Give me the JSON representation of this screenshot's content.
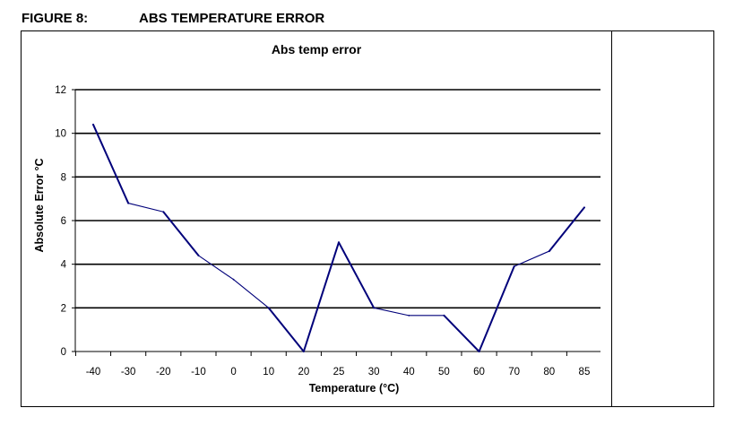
{
  "figure": {
    "label": "FIGURE 8:",
    "title": "ABS TEMPERATURE ERROR"
  },
  "chart_data": {
    "type": "line",
    "title": "Abs temp error",
    "xlabel": "Temperature  (°C)",
    "ylabel": "Absolute Error °C",
    "categories": [
      "-40",
      "-30",
      "-20",
      "-10",
      "0",
      "10",
      "20",
      "25",
      "30",
      "40",
      "50",
      "60",
      "70",
      "80",
      "85"
    ],
    "series": [
      {
        "values": [
          10.4,
          6.8,
          6.4,
          4.4,
          3.3,
          2.0,
          0.0,
          5.0,
          2.0,
          1.65,
          1.65,
          0.0,
          3.9,
          4.6,
          6.6
        ]
      }
    ],
    "ylim": [
      0,
      12
    ],
    "yticks": [
      "0",
      "2",
      "4",
      "6",
      "8",
      "10",
      "12"
    ],
    "grid": true,
    "legend": "none",
    "line_color": "#00007a",
    "grid_color": "#000000"
  }
}
